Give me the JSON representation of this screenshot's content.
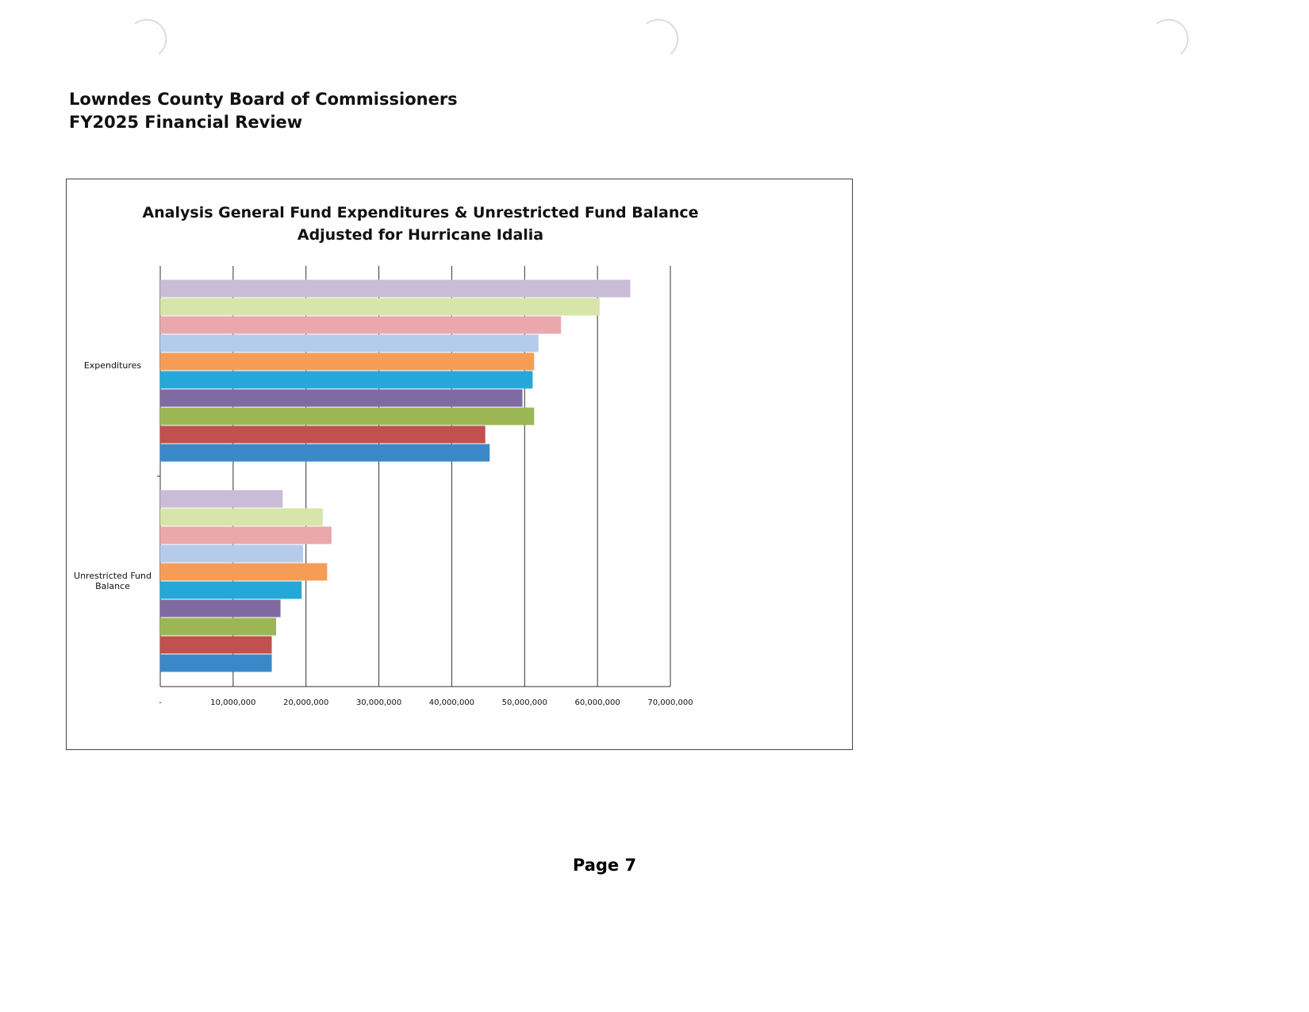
{
  "header": {
    "title": "Lowndes County Board of Commissioners",
    "subtitle": "FY2025 Financial Review"
  },
  "chart_data": {
    "type": "bar",
    "orientation": "horizontal",
    "title": "Analysis General Fund Expenditures  & Unrestricted Fund Balance Adjusted for Hurricane Idalia",
    "categories": [
      "Expenditures",
      "Unrestricted Fund Balance"
    ],
    "series": [
      {
        "color": "#c9bcd6",
        "values": [
          64500000,
          16800000
        ]
      },
      {
        "color": "#d8e5aa",
        "values": [
          60300000,
          22300000
        ]
      },
      {
        "color": "#eaa8ac",
        "values": [
          55000000,
          23500000
        ]
      },
      {
        "color": "#b5cbec",
        "values": [
          51900000,
          19600000
        ]
      },
      {
        "color": "#f59d56",
        "values": [
          51300000,
          22900000
        ]
      },
      {
        "color": "#25a7d9",
        "values": [
          51100000,
          19400000
        ]
      },
      {
        "color": "#7f6ba2",
        "values": [
          49700000,
          16500000
        ]
      },
      {
        "color": "#9cb654",
        "values": [
          51300000,
          15900000
        ]
      },
      {
        "color": "#c1504e",
        "values": [
          44600000,
          15300000
        ]
      },
      {
        "color": "#3b88c9",
        "values": [
          45200000,
          15300000
        ]
      }
    ],
    "xlim": [
      0,
      70000000
    ],
    "xticks": [
      {
        "value": 0,
        "label": "-"
      },
      {
        "value": 10000000,
        "label": "10,000,000"
      },
      {
        "value": 20000000,
        "label": "20,000,000"
      },
      {
        "value": 30000000,
        "label": "30,000,000"
      },
      {
        "value": 40000000,
        "label": "40,000,000"
      },
      {
        "value": 50000000,
        "label": "50,000,000"
      },
      {
        "value": 60000000,
        "label": "60,000,000"
      },
      {
        "value": 70000000,
        "label": "70,000,000"
      }
    ],
    "grid": true
  },
  "footer": {
    "page": "Page 7"
  }
}
